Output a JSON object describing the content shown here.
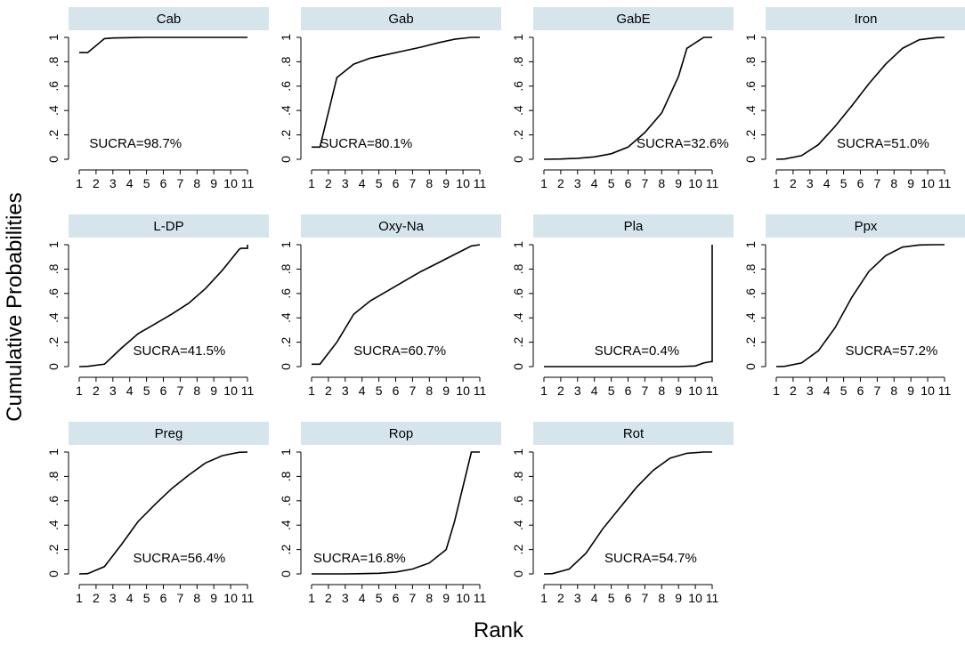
{
  "chart_data": {
    "type": "line",
    "xlabel": "Rank",
    "ylabel": "Cumulative Probabilities",
    "x_ticks": [
      1,
      2,
      3,
      4,
      5,
      6,
      7,
      8,
      9,
      10,
      11
    ],
    "x_tick_labels": [
      "1",
      "2",
      "3",
      "4",
      "5",
      "6",
      "7",
      "8",
      "9",
      "10",
      "11"
    ],
    "y_ticks": [
      0,
      0.2,
      0.4,
      0.6,
      0.8,
      1
    ],
    "y_tick_labels": [
      "0",
      ".2",
      ".4",
      ".6",
      ".8",
      "1"
    ],
    "ylim": [
      0,
      1
    ],
    "xlim": [
      1,
      11
    ],
    "panels": [
      {
        "title": "Cab",
        "sucra": "SUCRA=98.7%",
        "sucra_pos": [
          1.6,
          0.13
        ],
        "x": [
          1,
          1.5,
          2.5,
          3,
          4,
          5,
          6,
          7,
          8,
          9,
          10,
          11
        ],
        "y": [
          0.875,
          0.875,
          0.99,
          0.995,
          0.998,
          1,
          1,
          1,
          1,
          1,
          1,
          1
        ]
      },
      {
        "title": "Gab",
        "sucra": "SUCRA=80.1%",
        "sucra_pos": [
          1.5,
          0.13
        ],
        "x": [
          1,
          1.5,
          2.5,
          3.5,
          4.5,
          5.5,
          6.5,
          7.5,
          8.5,
          9.5,
          10.5,
          11
        ],
        "y": [
          0.1,
          0.1,
          0.67,
          0.78,
          0.83,
          0.86,
          0.89,
          0.92,
          0.955,
          0.985,
          1,
          1
        ]
      },
      {
        "title": "GabE",
        "sucra": "SUCRA=32.6%",
        "sucra_pos": [
          6.5,
          0.13
        ],
        "x": [
          1,
          2,
          3,
          4,
          5,
          6,
          6.5,
          7,
          8,
          9,
          9.5,
          10.5,
          11
        ],
        "y": [
          0,
          0.002,
          0.008,
          0.02,
          0.045,
          0.1,
          0.16,
          0.22,
          0.38,
          0.68,
          0.91,
          1,
          1
        ]
      },
      {
        "title": "Iron",
        "sucra": "SUCRA=51.0%",
        "sucra_pos": [
          4.6,
          0.13
        ],
        "x": [
          1,
          1.5,
          2.5,
          3.5,
          4.5,
          5.5,
          6.5,
          7.5,
          8.5,
          9.5,
          10.5,
          11
        ],
        "y": [
          0,
          0.002,
          0.03,
          0.12,
          0.27,
          0.44,
          0.62,
          0.78,
          0.91,
          0.98,
          0.998,
          1
        ]
      },
      {
        "title": "L-DP",
        "sucra": "SUCRA=41.5%",
        "sucra_pos": [
          4.2,
          0.13
        ],
        "x": [
          1,
          1.5,
          2.5,
          3.5,
          4.5,
          5.5,
          6.5,
          7.5,
          8.5,
          9.5,
          10.5,
          10.6,
          11,
          11
        ],
        "y": [
          0,
          0.002,
          0.02,
          0.15,
          0.27,
          0.35,
          0.43,
          0.52,
          0.64,
          0.79,
          0.96,
          0.97,
          0.97,
          1
        ]
      },
      {
        "title": "Oxy-Na",
        "sucra": "SUCRA=60.7%",
        "sucra_pos": [
          3.5,
          0.13
        ],
        "x": [
          1,
          1.5,
          2.5,
          3.5,
          4.5,
          5.5,
          6.5,
          7.5,
          8.5,
          9.5,
          10.5,
          11
        ],
        "y": [
          0.02,
          0.02,
          0.2,
          0.43,
          0.54,
          0.62,
          0.7,
          0.78,
          0.85,
          0.92,
          0.99,
          1
        ]
      },
      {
        "title": "Pla",
        "sucra": "SUCRA=0.4%",
        "sucra_pos": [
          4.0,
          0.13
        ],
        "x": [
          1,
          2,
          3,
          4,
          5,
          6,
          7,
          8,
          9,
          10,
          10.5,
          10.9,
          11,
          11
        ],
        "y": [
          0,
          0,
          0,
          0,
          0,
          0,
          0,
          0,
          0,
          0.005,
          0.03,
          0.04,
          0.04,
          1
        ]
      },
      {
        "title": "Ppx",
        "sucra": "SUCRA=57.2%",
        "sucra_pos": [
          5.1,
          0.13
        ],
        "x": [
          1,
          1.5,
          2.5,
          3.5,
          4.5,
          5.5,
          6.5,
          7.5,
          8.5,
          9.5,
          10.5,
          11
        ],
        "y": [
          0,
          0.002,
          0.03,
          0.13,
          0.32,
          0.57,
          0.78,
          0.91,
          0.98,
          0.998,
          1,
          1
        ]
      },
      {
        "title": "Preg",
        "sucra": "SUCRA=56.4%",
        "sucra_pos": [
          4.2,
          0.13
        ],
        "x": [
          1,
          1.5,
          2.5,
          3.5,
          4.5,
          5.5,
          6.5,
          7.5,
          8.5,
          9.5,
          10.5,
          11
        ],
        "y": [
          0,
          0.002,
          0.06,
          0.24,
          0.43,
          0.57,
          0.7,
          0.81,
          0.91,
          0.97,
          0.998,
          1
        ]
      },
      {
        "title": "Rop",
        "sucra": "SUCRA=16.8%",
        "sucra_pos": [
          1.1,
          0.13
        ],
        "x": [
          1,
          2,
          3,
          4,
          5,
          6,
          7,
          8,
          9,
          9.5,
          10.5,
          11
        ],
        "y": [
          0,
          0,
          0,
          0.002,
          0.005,
          0.015,
          0.04,
          0.09,
          0.2,
          0.43,
          1,
          1
        ]
      },
      {
        "title": "Rot",
        "sucra": "SUCRA=54.7%",
        "sucra_pos": [
          4.6,
          0.13
        ],
        "x": [
          1,
          1.5,
          2.5,
          3.5,
          4.5,
          5.5,
          6.5,
          7.5,
          8.5,
          9.5,
          10.5,
          11
        ],
        "y": [
          0,
          0.002,
          0.04,
          0.17,
          0.37,
          0.54,
          0.71,
          0.85,
          0.95,
          0.99,
          1,
          1
        ]
      }
    ]
  }
}
